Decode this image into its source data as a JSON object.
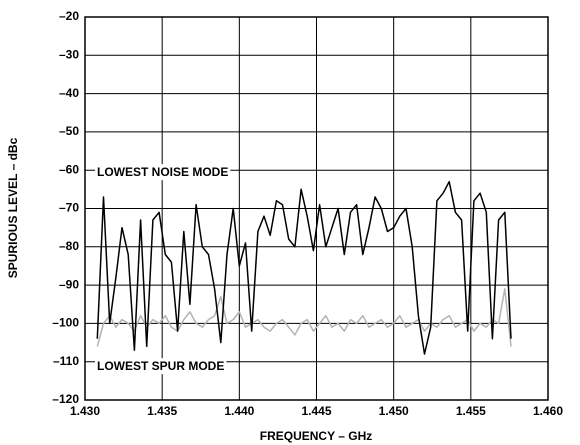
{
  "chart_data": {
    "type": "line",
    "xlabel": "FREQUENCY – GHz",
    "ylabel": "SPURIOUS LEVEL – dBc",
    "annotations": [
      "LOWEST NOISE MODE",
      "LOWEST SPUR MODE"
    ],
    "grid": true,
    "xlim": [
      1.43,
      1.46
    ],
    "ylim": [
      -120,
      -20
    ],
    "xticks": [
      {
        "value": 1.43,
        "label": "1.430"
      },
      {
        "value": 1.435,
        "label": "1.435"
      },
      {
        "value": 1.44,
        "label": "1.440"
      },
      {
        "value": 1.445,
        "label": "1.445"
      },
      {
        "value": 1.45,
        "label": "1.450"
      },
      {
        "value": 1.455,
        "label": "1.455"
      },
      {
        "value": 1.46,
        "label": "1.460"
      }
    ],
    "yticks": [
      {
        "value": -20,
        "label": "–20"
      },
      {
        "value": -30,
        "label": "–30"
      },
      {
        "value": -40,
        "label": "–40"
      },
      {
        "value": -50,
        "label": "–50"
      },
      {
        "value": -60,
        "label": "–60"
      },
      {
        "value": -70,
        "label": "–70"
      },
      {
        "value": -80,
        "label": "–80"
      },
      {
        "value": -90,
        "label": "–90"
      },
      {
        "value": -100,
        "label": "–100"
      },
      {
        "value": -110,
        "label": "–110"
      },
      {
        "value": -120,
        "label": "–120"
      }
    ],
    "x": [
      1.4308,
      1.4312,
      1.4316,
      1.432,
      1.4324,
      1.4328,
      1.4332,
      1.4336,
      1.434,
      1.4344,
      1.4348,
      1.4352,
      1.4356,
      1.436,
      1.4364,
      1.4368,
      1.4372,
      1.4376,
      1.438,
      1.4384,
      1.4388,
      1.4392,
      1.4396,
      1.44,
      1.4404,
      1.4408,
      1.4412,
      1.4416,
      1.442,
      1.4424,
      1.4428,
      1.4432,
      1.4436,
      1.444,
      1.4444,
      1.4448,
      1.4452,
      1.4456,
      1.446,
      1.4464,
      1.4468,
      1.4472,
      1.4476,
      1.448,
      1.4484,
      1.4488,
      1.4492,
      1.4496,
      1.45,
      1.4504,
      1.4508,
      1.4512,
      1.4516,
      1.452,
      1.4524,
      1.4528,
      1.4532,
      1.4536,
      1.454,
      1.4544,
      1.4548,
      1.4552,
      1.4556,
      1.456,
      1.4564,
      1.4568,
      1.4572,
      1.4576
    ],
    "series": [
      {
        "color": "#000000",
        "values": [
          -104,
          -67,
          -100,
          -88,
          -75,
          -82,
          -107,
          -73,
          -106,
          -73,
          -71,
          -82,
          -84,
          -102,
          -76,
          -95,
          -69,
          -80,
          -82,
          -91,
          -105,
          -82,
          -70,
          -85,
          -79,
          -102,
          -76,
          -72,
          -77,
          -68,
          -69,
          -78,
          -80,
          -65,
          -72,
          -81,
          -69,
          -80,
          -75,
          -70,
          -82,
          -71,
          -69,
          -82,
          -75,
          -67,
          -70,
          -76,
          -75,
          -72,
          -70,
          -80,
          -98,
          -108,
          -101,
          -68,
          -66,
          -63,
          -71,
          -73,
          -102,
          -68,
          -66,
          -71,
          -104,
          -73,
          -71,
          -104
        ]
      },
      {
        "color": "#b3b3b3",
        "values": [
          -106,
          -100,
          -98,
          -101,
          -99,
          -100,
          -102,
          -98,
          -101,
          -99,
          -100,
          -98,
          -101,
          -102,
          -99,
          -97,
          -100,
          -101,
          -99,
          -98,
          -93,
          -100,
          -99,
          -97,
          -101,
          -100,
          -99,
          -101,
          -102,
          -100,
          -99,
          -101,
          -103,
          -100,
          -99,
          -102,
          -100,
          -98,
          -101,
          -100,
          -102,
          -99,
          -100,
          -98,
          -101,
          -100,
          -99,
          -101,
          -100,
          -98,
          -101,
          -100,
          -99,
          -102,
          -100,
          -101,
          -99,
          -98,
          -101,
          -100,
          -99,
          -102,
          -100,
          -101,
          -99,
          -100,
          -91,
          -106
        ]
      }
    ]
  }
}
